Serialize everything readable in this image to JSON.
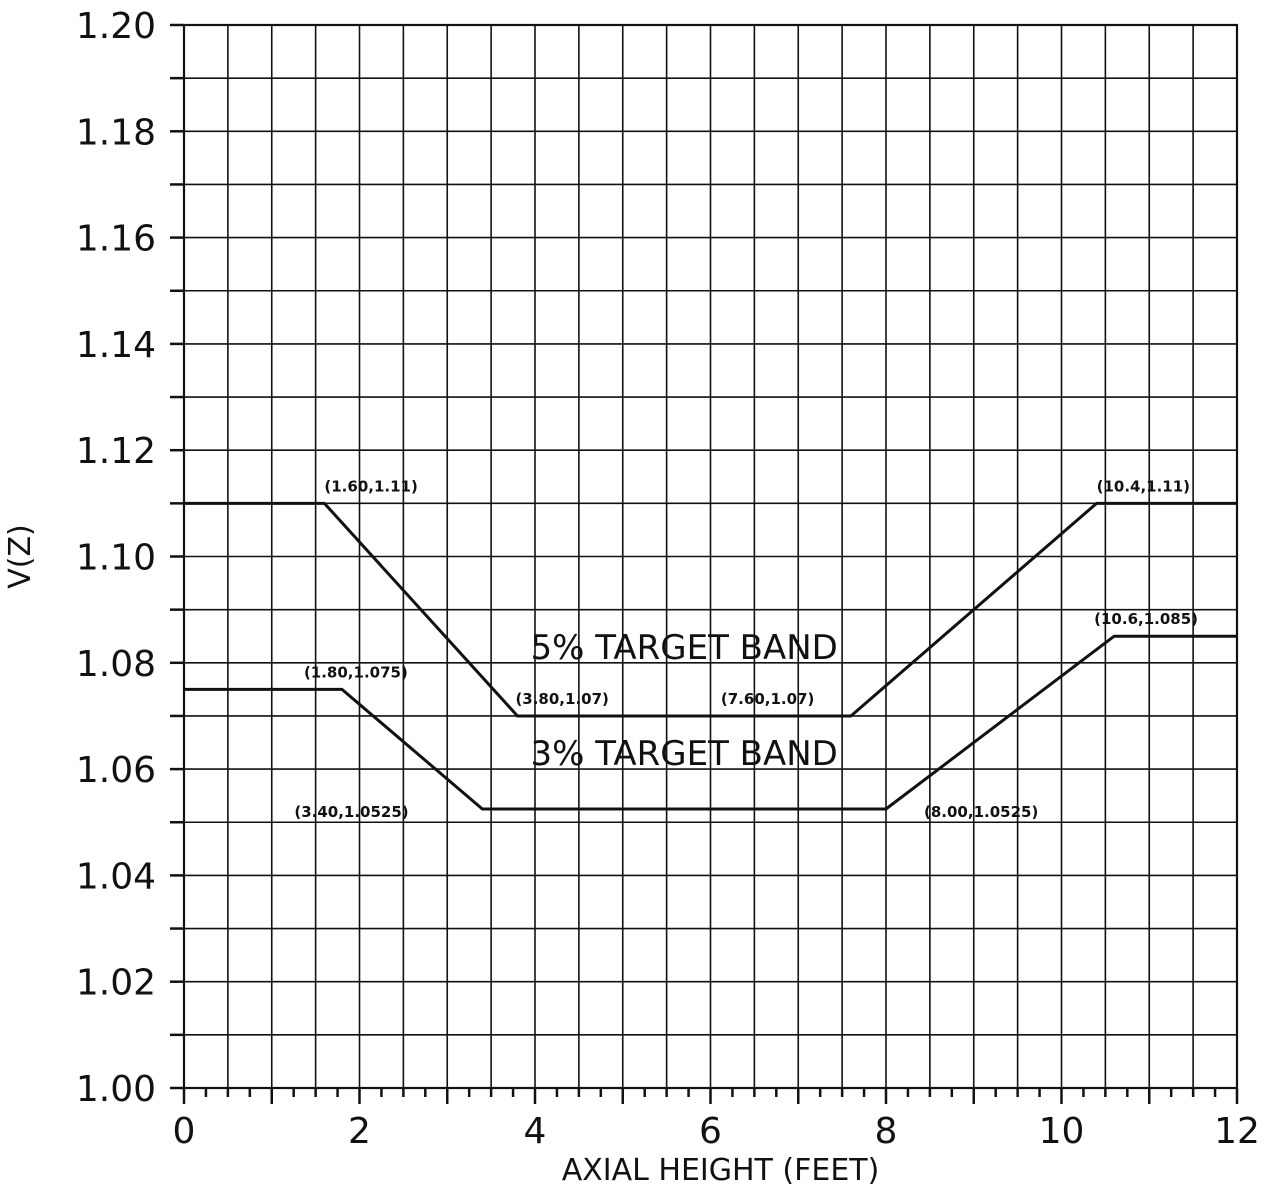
{
  "chart_data": {
    "type": "line",
    "title": "",
    "xlabel": "AXIAL HEIGHT (FEET)",
    "ylabel": "V(Z)",
    "xlim": [
      0,
      12
    ],
    "ylim": [
      1.0,
      1.2
    ],
    "grid": true,
    "x_ticks": [
      0,
      2,
      4,
      6,
      8,
      10,
      12
    ],
    "x_tick_labels": [
      "0",
      "2",
      "4",
      "6",
      "8",
      "10",
      "12"
    ],
    "y_ticks": [
      1.0,
      1.02,
      1.04,
      1.06,
      1.08,
      1.1,
      1.12,
      1.14,
      1.16,
      1.18,
      1.2
    ],
    "y_tick_labels": [
      "1.00",
      "1.02",
      "1.04",
      "1.06",
      "1.08",
      "1.10",
      "1.12",
      "1.14",
      "1.16",
      "1.18",
      "1.20"
    ],
    "series": [
      {
        "points": [
          [
            0,
            1.11
          ],
          [
            1.6,
            1.11
          ],
          [
            3.8,
            1.07
          ],
          [
            7.6,
            1.07
          ],
          [
            10.4,
            1.11
          ],
          [
            12,
            1.11
          ]
        ]
      },
      {
        "points": [
          [
            0,
            1.075
          ],
          [
            1.8,
            1.075
          ],
          [
            3.4,
            1.0525
          ],
          [
            8.0,
            1.0525
          ],
          [
            10.6,
            1.085
          ],
          [
            12,
            1.085
          ]
        ]
      }
    ],
    "annotations": [
      {
        "text": "(1.60,1.11)",
        "x": 1.6,
        "y": 1.11
      },
      {
        "text": "(10.4,1.11)",
        "x": 10.4,
        "y": 1.11
      },
      {
        "text": "(10.6,1.085)",
        "x": 10.6,
        "y": 1.085
      },
      {
        "text": "(1.80,1.075)",
        "x": 1.8,
        "y": 1.075
      },
      {
        "text": "(3.80,1.07)",
        "x": 3.8,
        "y": 1.07
      },
      {
        "text": "(7.60,1.07)",
        "x": 7.6,
        "y": 1.07
      },
      {
        "text": "(3.40,1.0525)",
        "x": 3.4,
        "y": 1.0525
      },
      {
        "text": "(8.00,1.0525)",
        "x": 8.0,
        "y": 1.0525
      }
    ],
    "band_labels": [
      {
        "text": "5% TARGET BAND",
        "x": 5.7,
        "y": 1.083
      },
      {
        "text": "3% TARGET BAND",
        "x": 5.7,
        "y": 1.063
      }
    ]
  }
}
